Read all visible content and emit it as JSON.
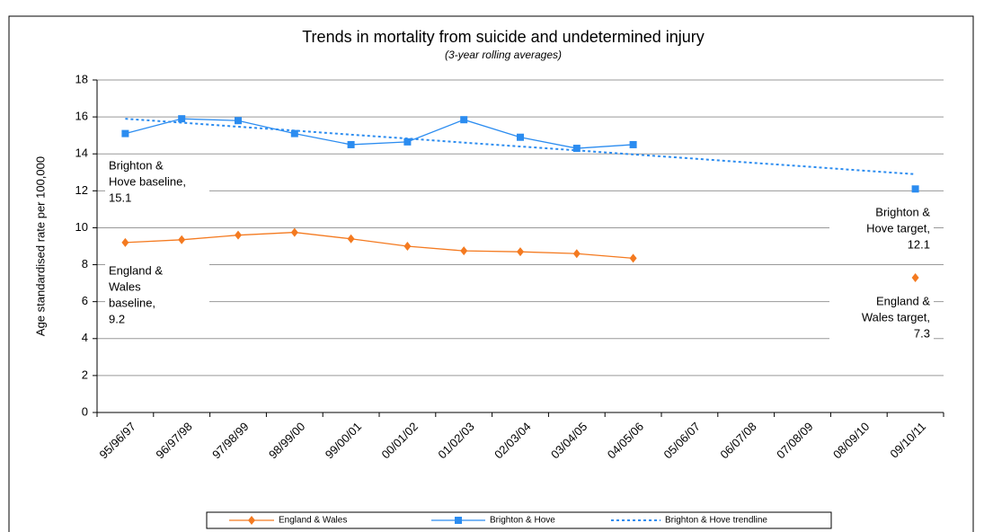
{
  "chart_data": {
    "type": "line",
    "title": "Trends in mortality from suicide and undetermined injury",
    "subtitle": "(3-year rolling averages)",
    "y_label": "Age standardised rate per 100,000",
    "categories": [
      "95/96/97",
      "96/97/98",
      "97/98/99",
      "98/99/00",
      "99/00/01",
      "00/01/02",
      "01/02/03",
      "02/03/04",
      "03/04/05",
      "04/05/06",
      "05/06/07",
      "06/07/08",
      "07/08/09",
      "08/09/10",
      "09/10/11"
    ],
    "series": [
      {
        "name": "England & Wales",
        "color": "#f47a20",
        "marker": "diamond",
        "dashed": false,
        "values": [
          9.2,
          9.35,
          9.6,
          9.75,
          9.4,
          9.0,
          8.75,
          8.7,
          8.6,
          8.35,
          null,
          null,
          null,
          null,
          7.3
        ]
      },
      {
        "name": "Brighton & Hove",
        "color": "#2b8cf0",
        "marker": "square",
        "dashed": false,
        "values": [
          15.1,
          15.9,
          15.8,
          15.1,
          14.5,
          14.65,
          15.85,
          14.9,
          14.3,
          14.5,
          null,
          null,
          null,
          null,
          12.1
        ]
      },
      {
        "name": "Brighton & Hove trendline",
        "color": "#2b8cf0",
        "marker": "none",
        "dashed": true,
        "values": [
          15.9,
          15.69,
          15.47,
          15.26,
          15.04,
          14.83,
          14.61,
          14.4,
          14.19,
          13.97,
          13.76,
          13.54,
          13.33,
          13.11,
          12.9
        ]
      }
    ],
    "annotations": [
      {
        "lines": [
          "Brighton &",
          "Hove baseline,",
          "15.1"
        ]
      },
      {
        "lines": [
          "England &",
          "Wales",
          "baseline,",
          "9.2"
        ]
      },
      {
        "lines": [
          "Brighton &",
          "Hove target,",
          "12.1"
        ]
      },
      {
        "lines": [
          "England &",
          "Wales target,",
          "7.3"
        ]
      }
    ],
    "ylim": [
      0,
      18
    ],
    "yticks": [
      0,
      2,
      4,
      6,
      8,
      10,
      12,
      14,
      16,
      18
    ],
    "grid": true
  }
}
